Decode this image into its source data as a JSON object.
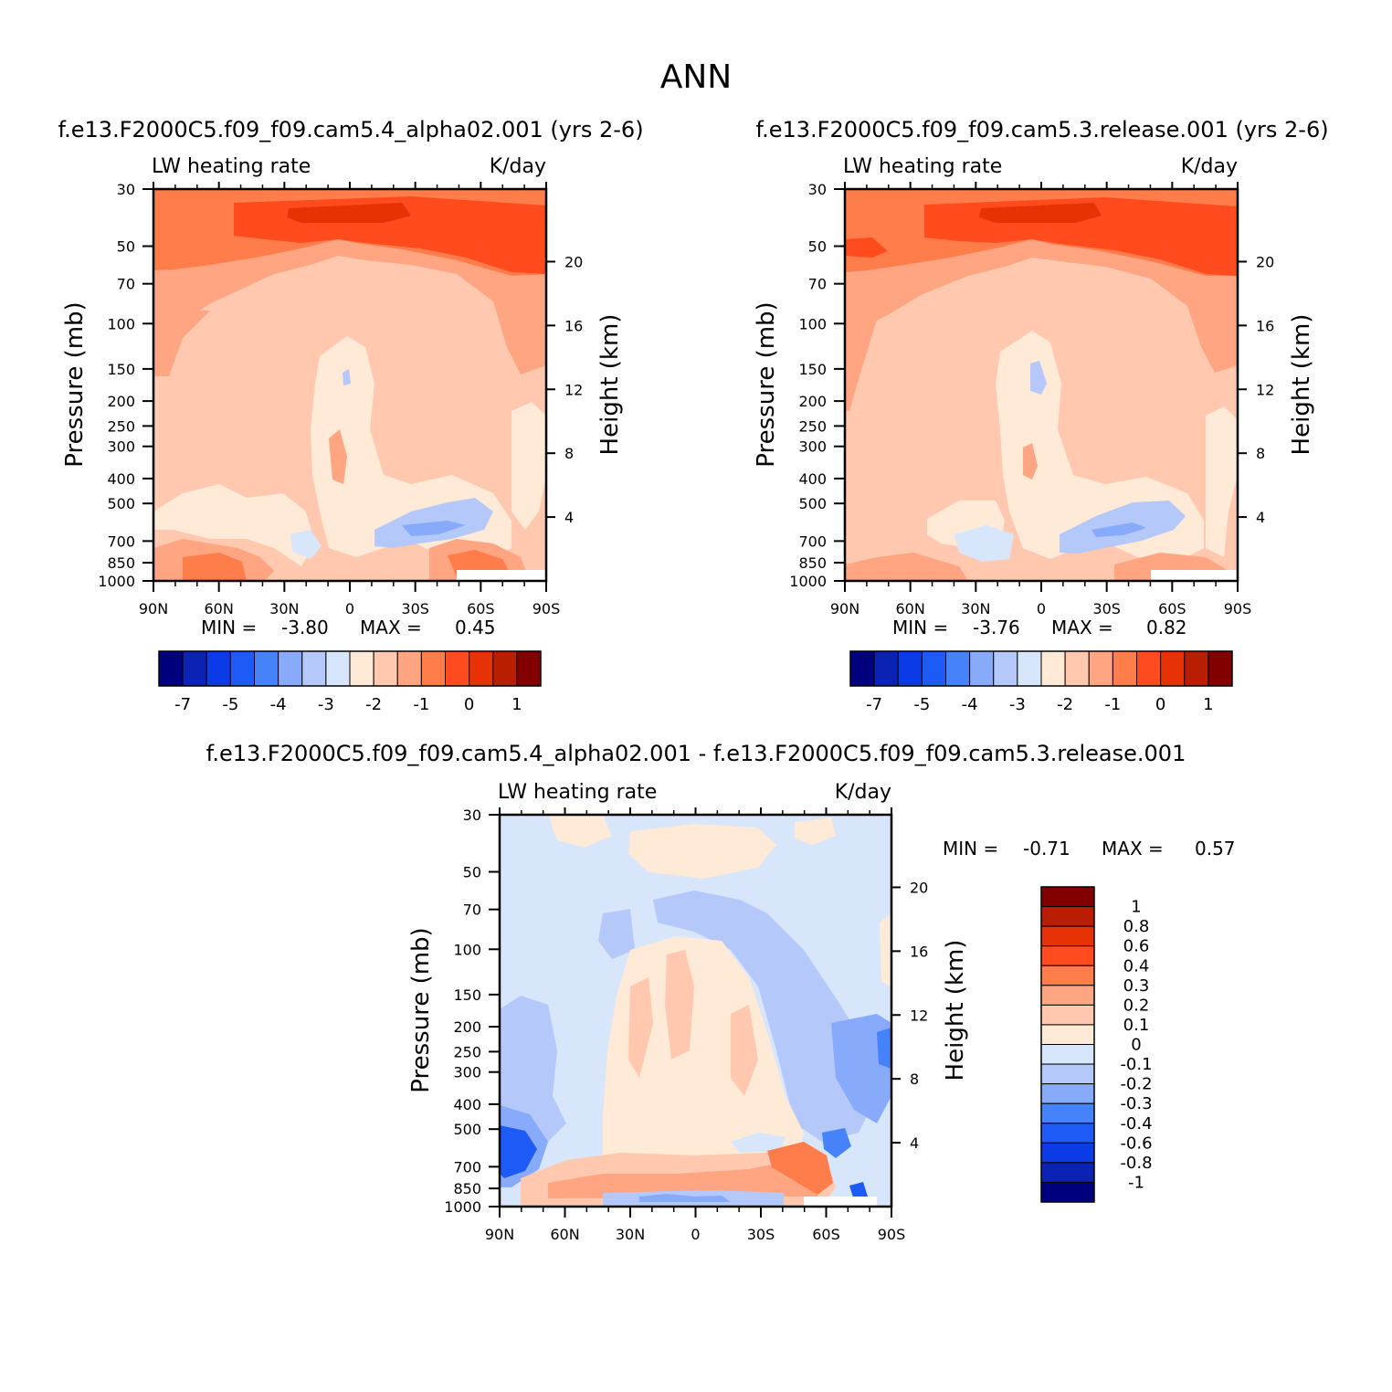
{
  "season_title": "ANN",
  "palette": {
    "blue_to_red": [
      "#00007f",
      "#0a23b4",
      "#0a3be6",
      "#1e5af5",
      "#4682fa",
      "#87aafa",
      "#b4c8fa",
      "#d7e6fa",
      "#ffe9d7",
      "#ffc8af",
      "#ffa582",
      "#ff7d4b",
      "#ff4b1e",
      "#e63205",
      "#b91e00",
      "#820000"
    ]
  },
  "common": {
    "variable_label": "LW heating rate",
    "units_label": "K/day",
    "ylabel": "Pressure (mb)",
    "y2label": "Height (km)",
    "pressure_ticks": [
      "30",
      "50",
      "70",
      "100",
      "150",
      "200",
      "250",
      "300",
      "400",
      "500",
      "700",
      "850",
      "1000"
    ],
    "height_ticks": [
      "20",
      "16",
      "12",
      "8",
      "4"
    ],
    "lat_ticks": [
      "90N",
      "60N",
      "30N",
      "0",
      "30S",
      "60S",
      "90S"
    ],
    "min_label": "MIN =",
    "max_label": "MAX ="
  },
  "chart_data": [
    {
      "type": "heatmap",
      "title": "f.e13.F2000C5.f09_f09.cam5.4_alpha02.001 (yrs 2-6)",
      "variable": "LW heating rate",
      "units": "K/day",
      "xlabel": "",
      "ylabel": "Pressure (mb)",
      "y2label": "Height (km)",
      "x_ticks": [
        "90N",
        "60N",
        "30N",
        "0",
        "30S",
        "60S",
        "90S"
      ],
      "y_ticks": [
        30,
        50,
        70,
        100,
        150,
        200,
        250,
        300,
        400,
        500,
        700,
        850,
        1000
      ],
      "y2_ticks": [
        20,
        16,
        12,
        8,
        4
      ],
      "ylim": [
        1000,
        30
      ],
      "min": "-3.80",
      "max": "0.45",
      "colorbar_levels": [
        "-7",
        "-5",
        "-4",
        "-3",
        "-2",
        "-1",
        "0",
        "1"
      ],
      "grid": false
    },
    {
      "type": "heatmap",
      "title": "f.e13.F2000C5.f09_f09.cam5.3.release.001 (yrs 2-6)",
      "variable": "LW heating rate",
      "units": "K/day",
      "xlabel": "",
      "ylabel": "Pressure (mb)",
      "y2label": "Height (km)",
      "x_ticks": [
        "90N",
        "60N",
        "30N",
        "0",
        "30S",
        "60S",
        "90S"
      ],
      "y_ticks": [
        30,
        50,
        70,
        100,
        150,
        200,
        250,
        300,
        400,
        500,
        700,
        850,
        1000
      ],
      "y2_ticks": [
        20,
        16,
        12,
        8,
        4
      ],
      "ylim": [
        1000,
        30
      ],
      "min": "-3.76",
      "max": "0.82",
      "colorbar_levels": [
        "-7",
        "-5",
        "-4",
        "-3",
        "-2",
        "-1",
        "0",
        "1"
      ],
      "grid": false
    },
    {
      "type": "heatmap",
      "title": "f.e13.F2000C5.f09_f09.cam5.4_alpha02.001 - f.e13.F2000C5.f09_f09.cam5.3.release.001",
      "variable": "LW heating rate",
      "units": "K/day",
      "xlabel": "",
      "ylabel": "Pressure (mb)",
      "y2label": "Height (km)",
      "x_ticks": [
        "90N",
        "60N",
        "30N",
        "0",
        "30S",
        "60S",
        "90S"
      ],
      "y_ticks": [
        30,
        50,
        70,
        100,
        150,
        200,
        250,
        300,
        400,
        500,
        700,
        850,
        1000
      ],
      "y2_ticks": [
        20,
        16,
        12,
        8,
        4
      ],
      "ylim": [
        1000,
        30
      ],
      "min": "-0.71",
      "max": "0.57",
      "colorbar_levels": [
        "1",
        "0.8",
        "0.6",
        "0.4",
        "0.3",
        "0.2",
        "0.1",
        "0",
        "-0.1",
        "-0.2",
        "-0.3",
        "-0.4",
        "-0.6",
        "-0.8",
        "-1"
      ],
      "grid": false
    }
  ]
}
